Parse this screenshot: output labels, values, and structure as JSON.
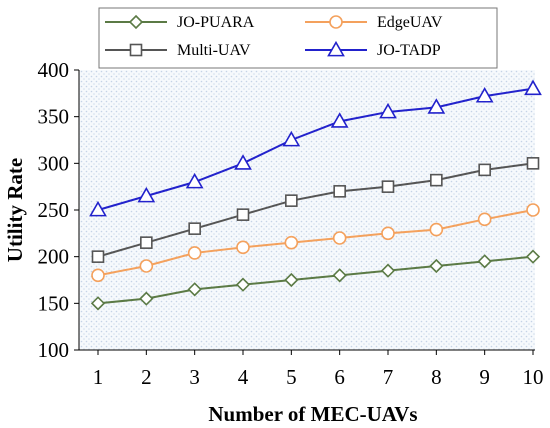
{
  "chart_data": {
    "type": "line",
    "xlabel": "Number of MEC-UAVs",
    "ylabel": "Utility Rate",
    "x": [
      1,
      2,
      3,
      4,
      5,
      6,
      7,
      8,
      9,
      10
    ],
    "xlim": [
      1,
      10
    ],
    "ylim": [
      100,
      400
    ],
    "yticks": [
      100,
      150,
      200,
      250,
      300,
      350,
      400
    ],
    "grid": false,
    "plot_background": "dotted light blue",
    "legend_position": "top",
    "series": [
      {
        "name": "JO-PUARA",
        "marker": "diamond",
        "color": "#5b7a45",
        "values": [
          150,
          155,
          165,
          170,
          175,
          180,
          185,
          190,
          195,
          200
        ]
      },
      {
        "name": "EdgeUAV",
        "marker": "circle",
        "color": "#f4a15d",
        "values": [
          180,
          190,
          204,
          210,
          215,
          220,
          225,
          229,
          240,
          250
        ]
      },
      {
        "name": "Multi-UAV",
        "marker": "square",
        "color": "#555555",
        "values": [
          200,
          215,
          230,
          245,
          260,
          270,
          275,
          282,
          293,
          300
        ]
      },
      {
        "name": "JO-TADP",
        "marker": "triangle",
        "color": "#2222cc",
        "values": [
          250,
          265,
          280,
          300,
          325,
          345,
          355,
          360,
          372,
          380
        ]
      }
    ]
  }
}
